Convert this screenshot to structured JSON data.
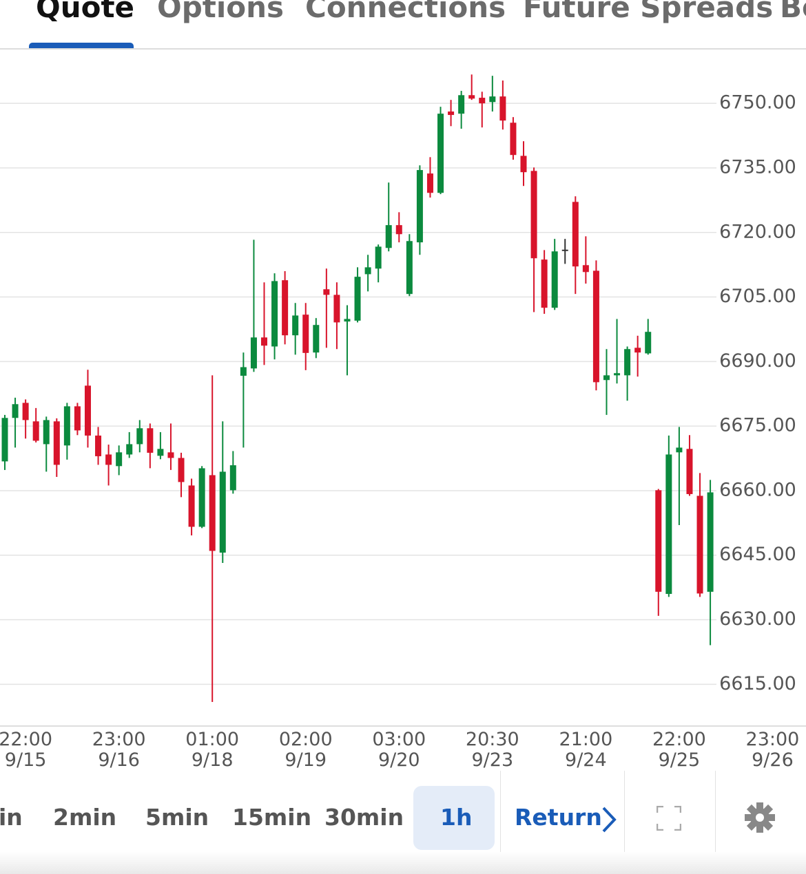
{
  "tabs": {
    "items": [
      "Quote",
      "Options",
      "Connections",
      "Future Spreads",
      "Bo"
    ],
    "active": "Quote"
  },
  "chart_data": {
    "type": "candlestick",
    "categories": [
      null,
      null,
      "22:00\n9/15",
      null,
      null,
      null,
      null,
      null,
      null,
      null,
      null,
      "23:00\n9/16",
      null,
      null,
      null,
      null,
      null,
      null,
      null,
      null,
      "01:00\n9/18",
      null,
      null,
      null,
      null,
      null,
      null,
      null,
      null,
      "02:00\n9/19",
      null,
      null,
      null,
      null,
      null,
      null,
      null,
      null,
      "03:00\n9/20",
      null,
      null,
      null,
      null,
      null,
      null,
      null,
      null,
      "20:30\n9/23",
      null,
      null,
      null,
      null,
      null,
      null,
      null,
      null,
      "21:00\n9/24",
      null,
      null,
      null,
      null,
      null,
      null,
      null,
      null,
      "22:00\n9/25",
      null,
      null,
      null,
      null,
      null,
      null,
      null,
      null,
      "23:00\n9/26"
    ],
    "open": [
      6666.8,
      6676.9,
      6680.4,
      6676.1,
      6670.8,
      6676.1,
      6670.5,
      6679.6,
      6684.4,
      6672.8,
      6668.4,
      6665.7,
      6668.4,
      6670.8,
      6674.5,
      6668.1,
      6668.9,
      6667.6,
      6661.2,
      6651.6,
      6663.6,
      6645.6,
      6660.1,
      6686.7,
      6688.4,
      6695.6,
      6693.5,
      6708.9,
      6696.1,
      6700.9,
      6692.1,
      6706.8,
      6705.5,
      6699.3,
      6699.5,
      6710.3,
      6711.6,
      6716.4,
      6721.7,
      6705.7,
      6717.7,
      6733.7,
      6729.2,
      6748.1,
      6747.6,
      6751.9,
      6751.3,
      6750.3,
      6751.6,
      6745.5,
      6737.8,
      6734.3,
      6713.7,
      6702.5,
      6716.0,
      6727.1,
      6712.4,
      6711.1,
      6685.7,
      6686.8,
      6686.8,
      6693.2,
      6691.9,
      6660.1,
      6636.0,
      6668.9,
      6669.7,
      6658.8,
      6636.5,
      null,
      null,
      null,
      null,
      null,
      null
    ],
    "high": [
      6677.6,
      6681.6,
      6681.2,
      6679.2,
      6677.2,
      6676.8,
      6680.4,
      6680.4,
      6688.1,
      6674.8,
      6670.7,
      6670.5,
      6673.6,
      6676.4,
      6675.6,
      6673.6,
      6675.6,
      6668.8,
      6662.8,
      6665.7,
      6686.8,
      6676.1,
      6669.2,
      6692.1,
      6718.3,
      6708.4,
      6710.5,
      6711.0,
      6703.6,
      6703.6,
      6700.1,
      6711.6,
      6708.4,
      6703.1,
      6711.9,
      6714.8,
      6717.2,
      6731.6,
      6724.7,
      6719.6,
      6735.6,
      6737.5,
      6749.2,
      6750.8,
      6752.9,
      6756.7,
      6752.7,
      6756.4,
      6755.3,
      6746.8,
      6741.2,
      6735.1,
      6715.9,
      6718.5,
      6718.5,
      6728.4,
      6719.1,
      6713.5,
      6692.9,
      6699.9,
      6693.5,
      6696.0,
      6699.9,
      6660.4,
      6672.8,
      6674.8,
      6672.9,
      6664.1,
      6662.5,
      null,
      null,
      null,
      null,
      null,
      null
    ],
    "low": [
      6664.8,
      6670.0,
      6672.1,
      6671.2,
      6664.4,
      6663.2,
      6667.2,
      6672.9,
      6670.0,
      6666.0,
      6661.2,
      6663.6,
      6667.6,
      6668.9,
      6665.2,
      6667.3,
      6664.8,
      6658.5,
      6649.6,
      6651.3,
      6610.9,
      6643.2,
      6659.3,
      6670.0,
      6687.6,
      6689.2,
      6690.5,
      6694.0,
      6691.6,
      6688.0,
      6690.8,
      6693.2,
      6692.9,
      6686.8,
      6699.1,
      6706.3,
      6708.4,
      6715.6,
      6717.7,
      6705.2,
      6714.8,
      6728.1,
      6728.9,
      6744.7,
      6744.1,
      6750.8,
      6744.4,
      6748.1,
      6743.9,
      6736.9,
      6730.8,
      6701.5,
      6701.1,
      6702.0,
      6712.7,
      6705.7,
      6708.1,
      6683.3,
      6677.6,
      6684.9,
      6680.9,
      6686.5,
      6691.6,
      6630.9,
      6635.3,
      6652.0,
      6658.8,
      6635.3,
      6624.1,
      null,
      null,
      null,
      null,
      null,
      null
    ],
    "close": [
      6676.9,
      6680.1,
      6676.4,
      6671.6,
      6676.4,
      6666.0,
      6679.6,
      6674.0,
      6672.8,
      6668.0,
      6666.0,
      6668.9,
      6670.8,
      6674.5,
      6668.8,
      6669.7,
      6667.6,
      6662.0,
      6651.6,
      6665.2,
      6646.0,
      6664.4,
      6665.9,
      6688.7,
      6695.6,
      6693.7,
      6708.7,
      6696.1,
      6700.7,
      6692.0,
      6698.5,
      6705.5,
      6699.1,
      6699.9,
      6709.7,
      6711.9,
      6716.7,
      6721.7,
      6719.6,
      6718.0,
      6734.5,
      6729.2,
      6747.6,
      6747.3,
      6751.9,
      6751.1,
      6750.0,
      6751.6,
      6746.0,
      6738.0,
      6734.0,
      6714.0,
      6702.5,
      6715.6,
      6716.0,
      6712.1,
      6710.8,
      6685.2,
      6686.8,
      6687.3,
      6692.9,
      6692.1,
      6696.9,
      6636.5,
      6668.4,
      6670.0,
      6659.2,
      6636.1,
      6659.6,
      null,
      null,
      null,
      null,
      null,
      null
    ],
    "up_color": "#0b8a3e",
    "down_color": "#d8142b",
    "flat_color": "#333333",
    "ylim": [
      6605.3,
      6762.5
    ],
    "yticks": [
      {
        "value": 6615,
        "label": "6615.00"
      },
      {
        "value": 6630,
        "label": "6630.00"
      },
      {
        "value": 6645,
        "label": "6645.00"
      },
      {
        "value": 6660,
        "label": "6660.00"
      },
      {
        "value": 6675,
        "label": "6675.00"
      },
      {
        "value": 6690,
        "label": "6690.00"
      },
      {
        "value": 6705,
        "label": "6705.00"
      },
      {
        "value": 6720,
        "label": "6720.00"
      },
      {
        "value": 6735,
        "label": "6735.00"
      },
      {
        "value": 6750,
        "label": "6750.00"
      }
    ],
    "grid": true
  },
  "intervals": {
    "items": [
      "in",
      "2min",
      "5min",
      "15min",
      "30min",
      "1h"
    ],
    "active": "1h"
  },
  "return_button": "Return"
}
